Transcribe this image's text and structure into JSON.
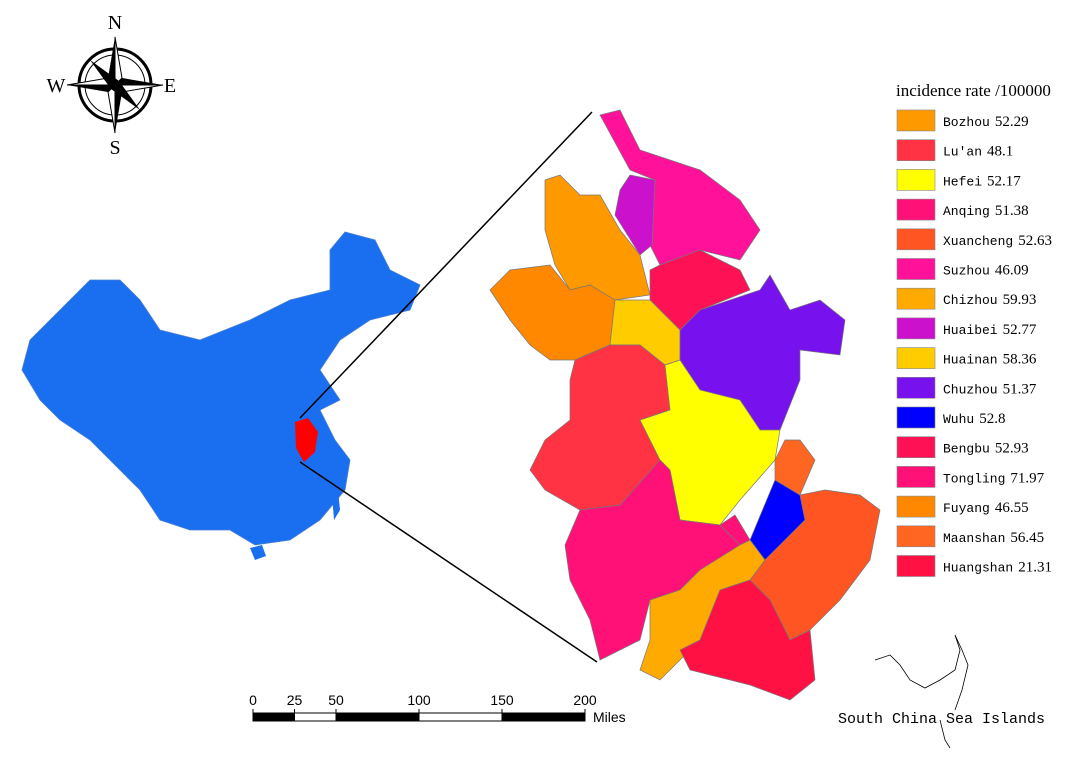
{
  "compass": {
    "north": "N",
    "south": "S",
    "east": "E",
    "west": "W"
  },
  "legend": {
    "title": "incidence rate /100000",
    "items": [
      {
        "name": "Bozhou",
        "value": 52.29,
        "color": "#ff9900"
      },
      {
        "name": "Lu'an",
        "value": 48.1,
        "color": "#ff3344"
      },
      {
        "name": "Hefei",
        "value": 52.17,
        "color": "#ffff00"
      },
      {
        "name": "Anqing",
        "value": 51.38,
        "color": "#ff1177"
      },
      {
        "name": "Xuancheng",
        "value": 52.63,
        "color": "#ff5522"
      },
      {
        "name": "Suzhou",
        "value": 46.09,
        "color": "#ff1199"
      },
      {
        "name": "Chizhou",
        "value": 59.93,
        "color": "#ffaa00"
      },
      {
        "name": "Huaibei",
        "value": 52.77,
        "color": "#cc11cc"
      },
      {
        "name": "Huainan",
        "value": 58.36,
        "color": "#ffcc00"
      },
      {
        "name": "Chuzhou",
        "value": 51.37,
        "color": "#7711ee"
      },
      {
        "name": "Wuhu",
        "value": 52.8,
        "color": "#0000ff"
      },
      {
        "name": "Bengbu",
        "value": 52.93,
        "color": "#ff1155"
      },
      {
        "name": "Tongling",
        "value": 71.97,
        "color": "#ff1177"
      },
      {
        "name": "Fuyang",
        "value": 46.55,
        "color": "#ff8800"
      },
      {
        "name": "Maanshan",
        "value": 56.45,
        "color": "#ff6622"
      },
      {
        "name": "Huangshan",
        "value": 21.31,
        "color": "#ff1144"
      }
    ]
  },
  "scale_bar": {
    "ticks": [
      0,
      25,
      50,
      100,
      150,
      200
    ],
    "unit": "Miles"
  },
  "inset_label": "South China Sea Islands"
}
